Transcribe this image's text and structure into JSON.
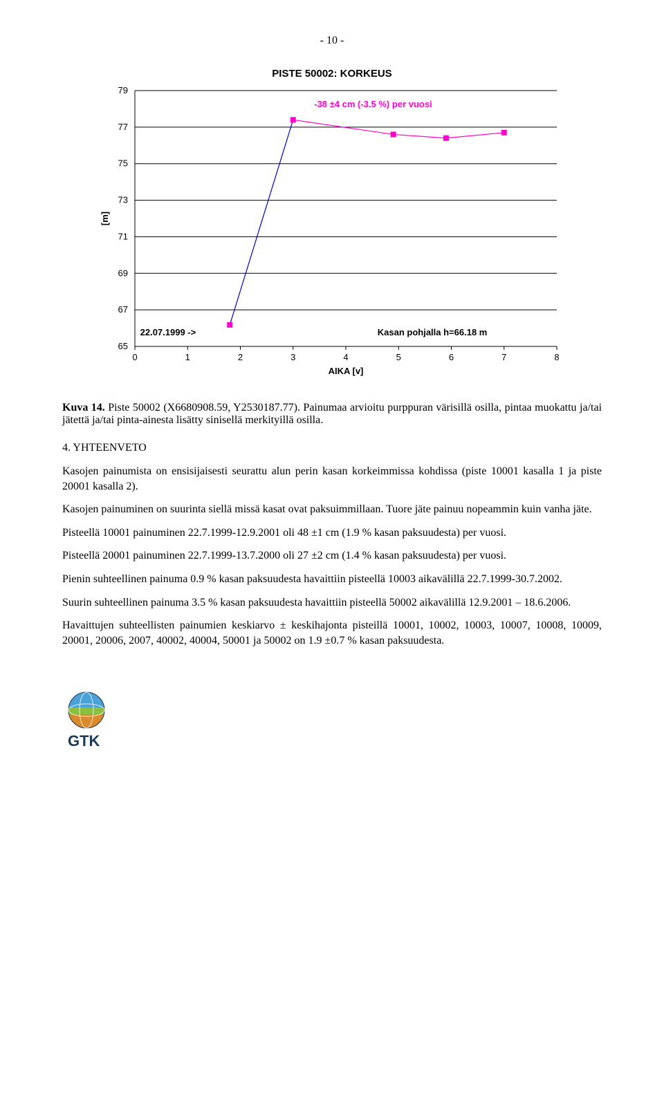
{
  "page_number": "- 10 -",
  "chart": {
    "type": "line_scatter",
    "title": "PISTE 50002: KORKEUS",
    "xlabel": "AIKA [v]",
    "ylabel": "[m]",
    "xlim": [
      0,
      8
    ],
    "ylim": [
      65,
      79
    ],
    "xticks": [
      0,
      1,
      2,
      3,
      4,
      5,
      6,
      7,
      8
    ],
    "yticks": [
      65,
      67,
      69,
      71,
      73,
      75,
      77,
      79
    ],
    "grid_color": "#000000",
    "background": "#ffffff",
    "series": [
      {
        "name": "korkeus",
        "type": "line",
        "color": "#0000cc",
        "line_width": 1.2,
        "x": [
          1.8,
          3.0
        ],
        "y": [
          66.18,
          77.4
        ]
      },
      {
        "name": "markers",
        "type": "scatter",
        "color": "#ff00cc",
        "marker": "square",
        "marker_size": 8,
        "x": [
          1.8,
          3.0,
          4.9,
          5.9,
          7.0
        ],
        "y": [
          66.18,
          77.4,
          76.6,
          76.4,
          76.7
        ]
      },
      {
        "name": "trend",
        "type": "line",
        "color": "#ff00cc",
        "line_width": 1.2,
        "x": [
          3.0,
          4.9,
          5.9,
          7.0
        ],
        "y": [
          77.4,
          76.6,
          76.4,
          76.7
        ]
      }
    ],
    "annotations": {
      "start": "22.07.1999 ->",
      "trend": "-38 ±4 cm (-3.5 %) per vuosi",
      "trend_color": "#ff00cc",
      "pohja": "Kasan pohjalla h=66.18 m"
    }
  },
  "caption": {
    "label": "Kuva 14.",
    "text": "Piste 50002 (X6680908.59, Y2530187.77). Painumaa arvioitu purppuran värisillä osilla, pintaa muokattu ja/tai jätettä ja/tai pinta-ainesta lisätty sinisellä merkityillä osilla."
  },
  "heading": "4. YHTEENVETO",
  "paragraphs": [
    "Kasojen painumista on ensisijaisesti seurattu alun perin kasan korkeimmissa kohdissa (piste 10001 kasalla 1 ja piste 20001 kasalla 2).",
    "Kasojen painuminen on suurinta siellä missä kasat ovat paksuimmillaan. Tuore jäte painuu nopeammin kuin vanha jäte.",
    "Pisteellä 10001 painuminen 22.7.1999-12.9.2001 oli 48 ±1 cm (1.9 % kasan paksuudesta) per vuosi.",
    "Pisteellä 20001 painuminen 22.7.1999-13.7.2000 oli 27 ±2 cm (1.4 % kasan paksuudesta) per vuosi.",
    "Pienin suhteellinen painuma 0.9 % kasan paksuudesta havaittiin pisteellä 10003 aikavälillä 22.7.1999-30.7.2002.",
    "Suurin suhteellinen painuma 3.5 % kasan paksuudesta havaittiin pisteellä 50002 aikavälillä 12.9.2001 – 18.6.2006.",
    "Havaittujen suhteellisten painumien keskiarvo ± keskihajonta pisteillä 10001, 10002, 10003, 10007, 10008, 10009, 20001, 20006, 2007, 40002, 40004, 50001 ja 50002 on 1.9 ±0.7 % kasan paksuudesta."
  ]
}
